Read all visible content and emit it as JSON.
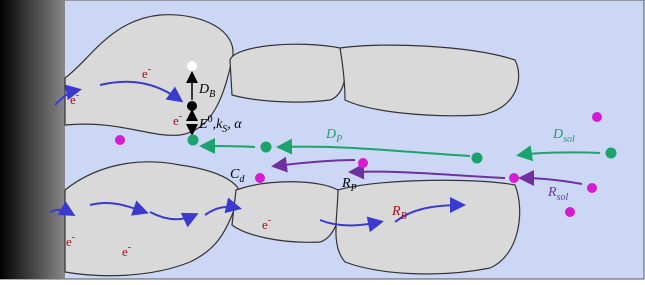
{
  "electron": {
    "base": "e",
    "sup": "-"
  },
  "labels": {
    "D_B": {
      "base": "D",
      "sub": "B"
    },
    "kinetics": {
      "E": "E",
      "E_sup": "0",
      "k": ",k",
      "k_sub": "S",
      "alpha": ", α"
    },
    "D_P": {
      "base": "D",
      "sub": "P"
    },
    "D_sol": {
      "base": "D",
      "sub": "sol"
    },
    "C_d": {
      "base": "C",
      "sub": "d"
    },
    "R_P": {
      "base": "R",
      "sub": "P"
    },
    "R_B": {
      "base": "R",
      "sub": "B"
    },
    "R_sol": {
      "base": "R",
      "sub": "sol"
    }
  }
}
